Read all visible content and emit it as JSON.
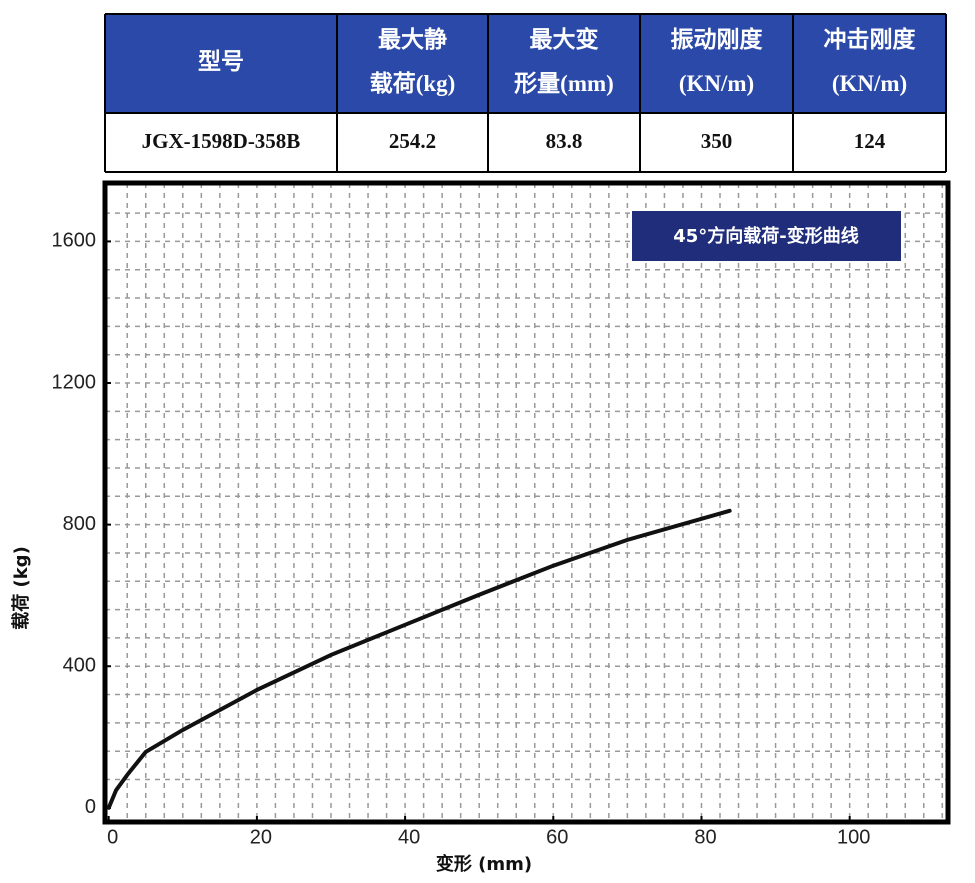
{
  "table": {
    "header": [
      [
        "型号"
      ],
      [
        "最大静",
        "载荷(kg)"
      ],
      [
        "最大变",
        "形量(mm)"
      ],
      [
        "振动刚度",
        "(KN/m)"
      ],
      [
        "冲击刚度",
        "(KN/m)"
      ]
    ],
    "rows": [
      [
        "JGX-1598D-358B",
        "254.2",
        "83.8",
        "350",
        "124"
      ]
    ]
  },
  "chart_data": {
    "type": "line",
    "title": "45°方向载荷-变形曲线",
    "x_label": "变形 (mm)",
    "y_label": "载荷 (kg)",
    "x": [
      0,
      1,
      2.5,
      5,
      10,
      20,
      30,
      40,
      50,
      60,
      70,
      83.8
    ],
    "series": [
      {
        "color": "#111111",
        "values": [
          0,
          50,
          93,
          158,
          220,
          333,
          432,
          517,
          602,
          684,
          757,
          839
        ]
      }
    ],
    "xlim": [
      -0.5,
      113
    ],
    "ylim": [
      -40,
      1765
    ],
    "xticks": [
      0,
      20,
      40,
      60,
      80,
      100
    ],
    "yticks": [
      0,
      400,
      800,
      1200,
      1600
    ],
    "grid": true,
    "xminor": 2.5,
    "yminor": 80
  }
}
